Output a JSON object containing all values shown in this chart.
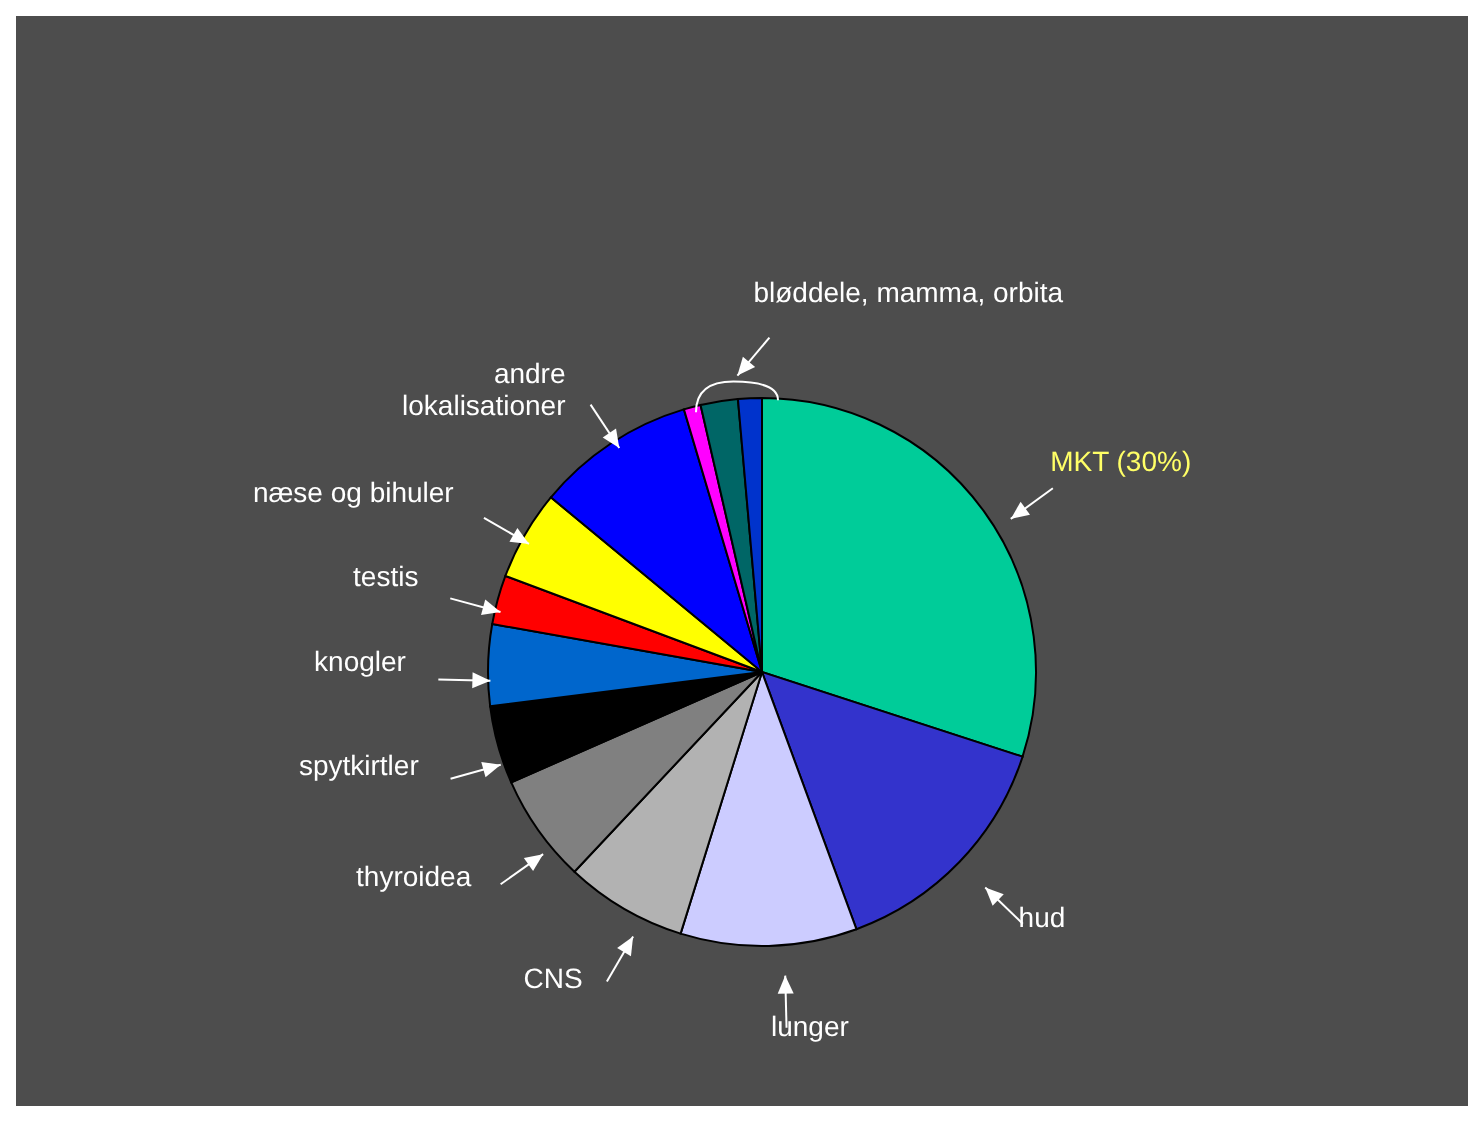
{
  "chart_data": {
    "type": "pie",
    "categories": [
      "MKT (30%)",
      "hud",
      "lunger",
      "CNS",
      "thyroidea",
      "spytkirtler",
      "knogler",
      "testis",
      "næse og bihuler",
      "andre\nlokalisationer",
      null,
      null,
      null
    ],
    "values": [
      30,
      14.4,
      10.4,
      7.2,
      6.4,
      4.6,
      4.8,
      2.9,
      5.3,
      9.4,
      1.0,
      2.2,
      1.4
    ],
    "colors": [
      "#00cc99",
      "#3333cc",
      "#ccccff",
      "#b2b2b2",
      "#808080",
      "#000000",
      "#0066cc",
      "#ff0000",
      "#ffff00",
      "#0000ff",
      "#ff00ff",
      "#006666",
      "#0033cc"
    ],
    "annotations": [
      "bløddele, mamma, orbita"
    ]
  }
}
